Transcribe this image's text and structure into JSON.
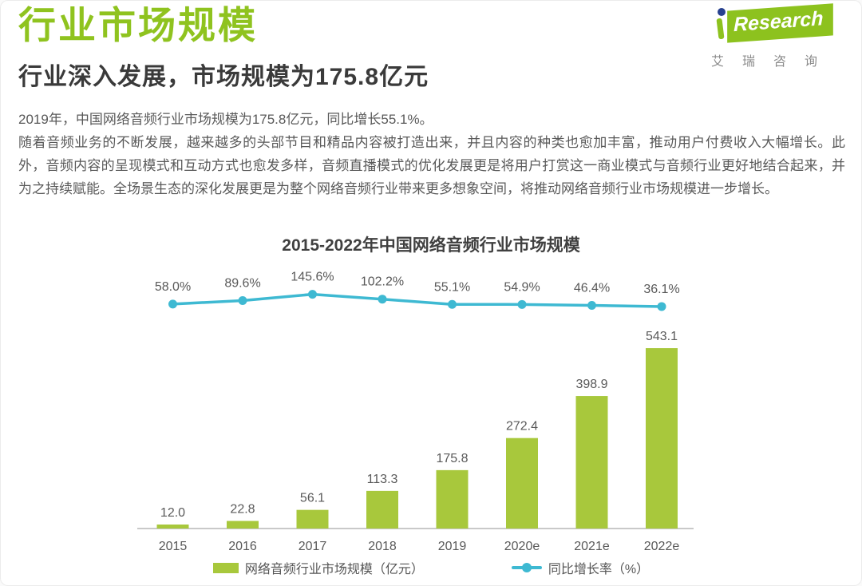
{
  "page": {
    "title": "行业市场规模",
    "subtitle": "行业深入发展，市场规模为175.8亿元",
    "paragraph1": "2019年，中国网络音频行业市场规模为175.8亿元，同比增长55.1%。",
    "paragraph2": "随着音频业务的不断发展，越来越多的头部节目和精品内容被打造出来，并且内容的种类也愈加丰富，推动用户付费收入大幅增长。此外，音频内容的呈现模式和互动方式也愈发多样，音频直播模式的优化发展更是将用户打赏这一商业模式与音频行业更好地结合起来，并为之持续赋能。全场景生态的深化发展更是为整个网络音频行业带来更多想象空间，将推动网络音频行业市场规模进一步增长。"
  },
  "logo": {
    "brand_text": "Research",
    "brand_cn": "艾瑞咨询"
  },
  "colors": {
    "brand_green": "#8fc31f",
    "bar_green": "#a8c83c",
    "line_teal": "#3eb9d2",
    "text_gray": "#595959"
  },
  "chart_data": {
    "type": "bar",
    "title": "2015-2022年中国网络音频行业市场规模",
    "categories": [
      "2015",
      "2016",
      "2017",
      "2018",
      "2019",
      "2020e",
      "2021e",
      "2022e"
    ],
    "series": [
      {
        "name": "网络音频行业市场规模（亿元）",
        "type": "bar",
        "color": "#a8c83c",
        "values": [
          12.0,
          22.8,
          56.1,
          113.3,
          175.8,
          272.4,
          398.9,
          543.1
        ]
      },
      {
        "name": "同比增长率（%）",
        "type": "line",
        "color": "#3eb9d2",
        "values": [
          58.0,
          89.6,
          145.6,
          102.2,
          55.1,
          54.9,
          46.4,
          36.1
        ]
      }
    ],
    "xlabel": "",
    "ylabel": "",
    "ylim_bar": [
      0,
      600
    ],
    "grid": false,
    "legend_position": "bottom",
    "value_labels": true
  }
}
